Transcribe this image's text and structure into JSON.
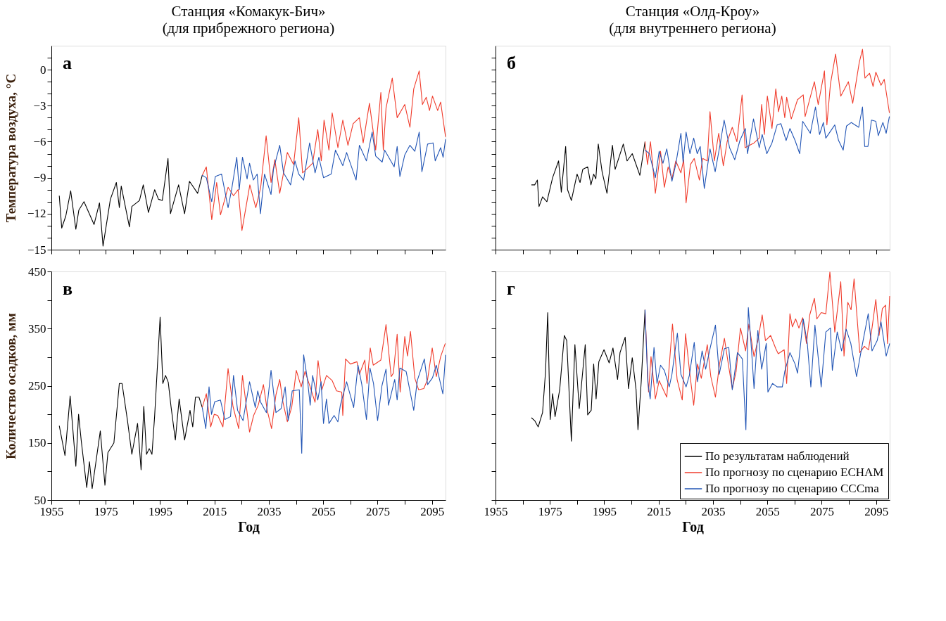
{
  "chart_data": [
    {
      "type": "line",
      "title": "Станция «Комакук-Бич»",
      "subtitle": "(для прибрежного региона)",
      "ylabel": "Температура воздуха, °C",
      "annotations": [
        "а"
      ],
      "xlim": [
        1955,
        2100
      ],
      "xticks": [
        1955,
        {
          "value": 1965,
          "label": null
        },
        1975,
        {
          "value": 1985,
          "label": null
        },
        1995,
        {
          "value": 2005,
          "label": null
        },
        2015,
        {
          "value": 2025,
          "label": null
        },
        2035,
        {
          "value": 2045,
          "label": null
        },
        2055,
        {
          "value": 2065,
          "label": null
        },
        2075,
        {
          "value": 2085,
          "label": null
        },
        2095
      ],
      "ylim": [
        -15,
        2
      ],
      "yticks": [
        -15,
        {
          "value": -14,
          "label": null
        },
        {
          "value": -13,
          "label": null
        },
        -12,
        {
          "value": -11,
          "label": null
        },
        {
          "value": -10,
          "label": null
        },
        -9,
        {
          "value": -8,
          "label": null
        },
        {
          "value": -7,
          "label": null
        },
        -6,
        {
          "value": -5,
          "label": null
        },
        {
          "value": -4,
          "label": null
        },
        -3,
        {
          "value": -2,
          "label": null
        },
        {
          "value": -1,
          "label": null
        },
        0,
        {
          "value": 1,
          "label": null
        }
      ],
      "grid": false,
      "tick_labels": "y",
      "line_style": "solid",
      "marker": "none",
      "series": [
        {
          "color": "#000000",
          "x": [
            1957.9,
            1958.8,
            1960.3,
            1962.1,
            1964,
            1965.1,
            1967,
            1970.7,
            1972.7,
            1974,
            1976.7,
            1978.9,
            1980,
            1980.7,
            1983.7,
            1984.6,
            1987.4,
            1988.8,
            1990.7,
            1993,
            1994.4,
            1995.8,
            1997.9,
            1998.8,
            2001.8,
            2004,
            2005.8,
            2008.8,
            2010.5
          ],
          "values": [
            -10.5,
            -13.2,
            -12.2,
            -10.1,
            -13.3,
            -11.7,
            -11,
            -12.9,
            -11.1,
            -14.7,
            -10.8,
            -9.4,
            -11.5,
            -9.7,
            -13.1,
            -11.4,
            -10.9,
            -9.6,
            -11.9,
            -10,
            -10.8,
            -10.9,
            -7.4,
            -12,
            -9.6,
            -12,
            -9.3,
            -10.3,
            -8.8
          ]
        },
        {
          "color": "#f03c2c",
          "x": [
            2010.5,
            2012,
            2014,
            2015.8,
            2017.2,
            2020,
            2022,
            2023.7,
            2025.1,
            2028,
            2030.2,
            2032,
            2034,
            2035.8,
            2037.2,
            2039,
            2041.8,
            2044.1,
            2046,
            2047.4,
            2051.1,
            2053,
            2054.3,
            2055.3,
            2057.1,
            2058.3,
            2060.4,
            2062.2,
            2064.1,
            2066,
            2068.3,
            2069.7,
            2072,
            2074.3,
            2076.2,
            2077.1,
            2078.1,
            2080.4,
            2082.2,
            2085,
            2086.9,
            2088.3,
            2090.3,
            2091.5,
            2092.9,
            2094.1,
            2095.2,
            2097.1,
            2098.2,
            2100
          ],
          "values": [
            -8.8,
            -8.1,
            -12.5,
            -9.4,
            -12.1,
            -9.8,
            -10.5,
            -10,
            -13.4,
            -9.6,
            -11.5,
            -9.8,
            -5.5,
            -9.4,
            -7.5,
            -10.3,
            -6.9,
            -7.9,
            -4,
            -8.6,
            -7.8,
            -5,
            -7.6,
            -4.2,
            -6.7,
            -3.6,
            -6.5,
            -4.2,
            -6.3,
            -4.5,
            -4,
            -6.1,
            -2.8,
            -6.7,
            -1.9,
            -6.7,
            -3.2,
            -0.7,
            -4,
            -2.9,
            -4.8,
            -1.6,
            -0.1,
            -2.9,
            -2.3,
            -3.4,
            -2.2,
            -3.4,
            -2.7,
            -5.6
          ]
        },
        {
          "color": "#2255b5",
          "x": [
            2010.5,
            2012,
            2014,
            2015.3,
            2017.6,
            2020,
            2021.3,
            2023.2,
            2024.1,
            2025.3,
            2027,
            2027.9,
            2029.3,
            2030.7,
            2031.9,
            2033.4,
            2035.8,
            2036.7,
            2039,
            2040.4,
            2043,
            2044.6,
            2046,
            2047.8,
            2050,
            2052,
            2053.4,
            2055.1,
            2057.9,
            2059.5,
            2062.2,
            2063.6,
            2067.1,
            2068.3,
            2070.9,
            2073,
            2074.3,
            2076.7,
            2077.6,
            2081.1,
            2082.2,
            2083.2,
            2085,
            2086.9,
            2088.7,
            2090.3,
            2091.3,
            2093.4,
            2095.4,
            2096.2,
            2098.2,
            2099.1,
            2100
          ],
          "values": [
            -8.8,
            -9,
            -11,
            -8.9,
            -8.7,
            -11.5,
            -10,
            -7.3,
            -10,
            -7.3,
            -9.1,
            -7.8,
            -9.2,
            -8.7,
            -12,
            -8.7,
            -10.4,
            -8.3,
            -6.3,
            -8.6,
            -9.6,
            -7.6,
            -8.7,
            -9.2,
            -6.1,
            -8.6,
            -7.3,
            -9,
            -8.7,
            -6.7,
            -8,
            -6.9,
            -9.2,
            -6.3,
            -7.6,
            -5.2,
            -7.2,
            -7.7,
            -6.7,
            -8.1,
            -6.4,
            -8.9,
            -7.1,
            -6.3,
            -6.8,
            -5.2,
            -8.5,
            -6.2,
            -6.1,
            -7.6,
            -6.5,
            -7.3,
            -5.8
          ]
        }
      ]
    },
    {
      "type": "line",
      "title": "Станция «Олд-Кроу»",
      "subtitle": "(для внутреннего региона)",
      "annotations": [
        "б"
      ],
      "xlim": [
        1955,
        2100
      ],
      "xticks": [
        1955,
        {
          "value": 1965,
          "label": null
        },
        1975,
        {
          "value": 1985,
          "label": null
        },
        1995,
        {
          "value": 2005,
          "label": null
        },
        2015,
        {
          "value": 2025,
          "label": null
        },
        2035,
        {
          "value": 2045,
          "label": null
        },
        2055,
        {
          "value": 2065,
          "label": null
        },
        2075,
        {
          "value": 2085,
          "label": null
        },
        2095
      ],
      "ylim": [
        -15,
        2
      ],
      "yticks": [
        -15,
        {
          "value": -14,
          "label": null
        },
        {
          "value": -13,
          "label": null
        },
        -12,
        {
          "value": -11,
          "label": null
        },
        {
          "value": -10,
          "label": null
        },
        -9,
        {
          "value": -8,
          "label": null
        },
        {
          "value": -7,
          "label": null
        },
        -6,
        {
          "value": -5,
          "label": null
        },
        {
          "value": -4,
          "label": null
        },
        -3,
        {
          "value": -2,
          "label": null
        },
        {
          "value": -1,
          "label": null
        },
        0,
        {
          "value": 1,
          "label": null
        }
      ],
      "grid": false,
      "tick_labels": false,
      "line_style": "solid",
      "marker": "none",
      "series": [
        {
          "color": "#000000",
          "x": [
            1968.2,
            1969.4,
            1970.4,
            1971,
            1972.3,
            1973.9,
            1976,
            1978.2,
            1979.2,
            1980.8,
            1981.5,
            1982.9,
            1985,
            1986.1,
            1987.1,
            1988.9,
            1990.1,
            1991.1,
            1991.9,
            1992.8,
            1994.2,
            1996,
            1998,
            1999,
            2002,
            2003.4,
            2005.3,
            2008.1,
            2010
          ],
          "values": [
            -9.6,
            -9.6,
            -9.2,
            -11.4,
            -10.6,
            -11,
            -9,
            -7.6,
            -10.2,
            -6.4,
            -10,
            -10.9,
            -8.7,
            -9.4,
            -8.3,
            -8.1,
            -9.6,
            -8.7,
            -9.1,
            -6.2,
            -8.5,
            -10.3,
            -6.3,
            -8.3,
            -6.2,
            -7.6,
            -7,
            -8.8,
            -6
          ]
        },
        {
          "color": "#f03c2c",
          "x": [
            2010,
            2010.9,
            2012,
            2013.8,
            2015.7,
            2017.1,
            2018.5,
            2019.9,
            2021.3,
            2023.2,
            2024.2,
            2025.1,
            2026.7,
            2028.1,
            2030,
            2031.2,
            2032.9,
            2033.9,
            2035.5,
            2037.1,
            2038.8,
            2040.2,
            2042.1,
            2043.8,
            2045.7,
            2046.8,
            2050.1,
            2052,
            2052.9,
            2053.9,
            2055,
            2056.7,
            2058.1,
            2059.1,
            2060.3,
            2061.4,
            2062.1,
            2063.8,
            2066.1,
            2068.2,
            2068.9,
            2072.3,
            2073.7,
            2076,
            2076.9,
            2078.2,
            2080.1,
            2082,
            2084.8,
            2086.4,
            2088.8,
            2090,
            2090.9,
            2092.6,
            2093.9,
            2094.9,
            2096.8,
            2098,
            2099.9
          ],
          "values": [
            -6,
            -7.9,
            -6,
            -10.3,
            -6.8,
            -9.8,
            -8.1,
            -9.1,
            -7.6,
            -8.6,
            -7.5,
            -11.1,
            -7.9,
            -7.4,
            -9.2,
            -7.4,
            -7.6,
            -3.5,
            -7.6,
            -5.3,
            -8,
            -6,
            -4.8,
            -6,
            -2.1,
            -6.5,
            -6.1,
            -5.7,
            -2.9,
            -5.4,
            -2.2,
            -4.9,
            -1.6,
            -3.5,
            -2.2,
            -4,
            -2.3,
            -4.1,
            -2.5,
            -2.1,
            -3.9,
            -1,
            -2.9,
            -0.1,
            -4.6,
            -1.2,
            1.3,
            -2.2,
            -1,
            -2.8,
            0.6,
            1.7,
            -0.7,
            -0.3,
            -1.4,
            -0.2,
            -1.3,
            -0.8,
            -3.6
          ]
        },
        {
          "color": "#2255b5",
          "x": [
            2010,
            2011.6,
            2013.8,
            2015.2,
            2016.6,
            2018,
            2019.9,
            2021.3,
            2023.2,
            2024,
            2025.1,
            2026.5,
            2027.9,
            2029.2,
            2030.3,
            2031.8,
            2033.9,
            2035.8,
            2037.4,
            2039.1,
            2041.1,
            2043,
            2044.9,
            2046.9,
            2047.7,
            2049.9,
            2052,
            2053.1,
            2054.8,
            2056.7,
            2058.6,
            2060,
            2061.9,
            2063.3,
            2065.2,
            2066.9,
            2068,
            2070.8,
            2072.7,
            2074.2,
            2075.6,
            2076.5,
            2079.8,
            2081.2,
            2082.9,
            2084.1,
            2085.9,
            2088.6,
            2090,
            2090.8,
            2092,
            2093.3,
            2094.9,
            2095.8,
            2097.5,
            2098.7,
            2099.9
          ],
          "values": [
            -6.7,
            -7,
            -9,
            -6.8,
            -7.8,
            -6.6,
            -9.3,
            -7.9,
            -5.3,
            -7.7,
            -5.2,
            -7,
            -5.7,
            -7,
            -6.4,
            -9.9,
            -6.6,
            -8.5,
            -6.5,
            -4.2,
            -6.5,
            -7.5,
            -5.9,
            -4.9,
            -7,
            -4.1,
            -6.5,
            -5.4,
            -7,
            -6.1,
            -4.6,
            -4.5,
            -5.9,
            -4.9,
            -5.9,
            -7,
            -4.3,
            -5.3,
            -3.1,
            -5.4,
            -4.4,
            -5.7,
            -4.6,
            -5.9,
            -6.7,
            -4.7,
            -4.4,
            -4.8,
            -3.1,
            -6.4,
            -6.4,
            -4.2,
            -4.3,
            -5.5,
            -4.4,
            -5.3,
            -3.9
          ]
        }
      ]
    },
    {
      "type": "line",
      "xlabel": "Год",
      "ylabel": "Количество осадков, мм",
      "annotations": [
        "в"
      ],
      "xlim": [
        1955,
        2100
      ],
      "xticks": [
        1955,
        {
          "value": 1965,
          "label": null
        },
        1975,
        {
          "value": 1985,
          "label": null
        },
        1995,
        {
          "value": 2005,
          "label": null
        },
        2015,
        {
          "value": 2025,
          "label": null
        },
        2035,
        {
          "value": 2045,
          "label": null
        },
        2055,
        {
          "value": 2065,
          "label": null
        },
        2075,
        {
          "value": 2085,
          "label": null
        },
        2095
      ],
      "ylim": [
        50,
        450
      ],
      "yticks": [
        50,
        {
          "value": 100,
          "label": null
        },
        150,
        {
          "value": 200,
          "label": null
        },
        250,
        {
          "value": 300,
          "label": null
        },
        350,
        {
          "value": 400,
          "label": null
        },
        450
      ],
      "grid": false,
      "line_style": "solid",
      "marker": "none",
      "series": [
        {
          "color": "#000000",
          "x": [
            1957.9,
            1960,
            1961.9,
            1964,
            1965,
            1966,
            1968,
            1969,
            1970,
            1973,
            1974.7,
            1975.8,
            1978,
            1980,
            1981,
            1983,
            1984.6,
            1986.7,
            1988,
            1989,
            1990,
            1991,
            1992,
            1993,
            1994,
            1995,
            1996,
            1997,
            1998,
            1999,
            2000.6,
            2002,
            2004,
            2006,
            2007,
            2008,
            2009.3,
            2010.5
          ],
          "values": [
            180,
            128,
            232,
            109,
            200,
            153,
            72,
            117,
            70,
            171,
            76,
            133,
            150,
            254,
            254,
            189,
            130,
            184,
            103,
            214,
            130,
            140,
            130,
            198,
            284,
            370,
            254,
            268,
            256,
            214,
            155,
            227,
            155,
            207,
            178,
            230,
            230,
            212
          ]
        },
        {
          "color": "#f03c2c",
          "x": [
            2010.5,
            2012,
            2013.6,
            2014.9,
            2016.2,
            2018.1,
            2020,
            2021.8,
            2023.9,
            2025.3,
            2027.9,
            2029.4,
            2031.1,
            2033,
            2034.4,
            2036,
            2037.6,
            2039,
            2040.2,
            2041.8,
            2043.4,
            2045.1,
            2046.9,
            2048.3,
            2050.2,
            2052,
            2053.1,
            2054.5,
            2056.2,
            2058.3,
            2059.9,
            2061.8,
            2062.2,
            2063.2,
            2065,
            2067.4,
            2068.3,
            2070.3,
            2071.1,
            2072.3,
            2073.4,
            2076.2,
            2078.1,
            2080,
            2080.8,
            2082.2,
            2083.3,
            2085,
            2086,
            2087.1,
            2088.7,
            2090.1,
            2092,
            2093.4,
            2095.1,
            2096.6,
            2098.2,
            2099.9
          ],
          "values": [
            212,
            236,
            178,
            200,
            198,
            178,
            280,
            214,
            175,
            268,
            169,
            198,
            216,
            252,
            207,
            175,
            234,
            261,
            221,
            187,
            212,
            277,
            248,
            275,
            248,
            221,
            294,
            243,
            268,
            259,
            241,
            239,
            198,
            297,
            288,
            292,
            270,
            295,
            254,
            316,
            286,
            295,
            357,
            266,
            272,
            340,
            239,
            336,
            302,
            345,
            263,
            243,
            245,
            261,
            316,
            266,
            301,
            324
          ]
        },
        {
          "color": "#2255b5",
          "x": [
            2010.5,
            2011.8,
            2013,
            2013.9,
            2015.1,
            2017.2,
            2018.8,
            2020.9,
            2022,
            2023.5,
            2025.5,
            2027.9,
            2030,
            2030.9,
            2032,
            2034.1,
            2035.8,
            2037.6,
            2039.5,
            2041,
            2042.1,
            2043.6,
            2046.2,
            2047.1,
            2047.8,
            2049.2,
            2050.2,
            2051.1,
            2053,
            2054.2,
            2055.1,
            2056.2,
            2057.1,
            2059,
            2060.4,
            2061.3,
            2063.6,
            2066.2,
            2067.8,
            2069.2,
            2070.9,
            2072.2,
            2073.5,
            2075,
            2076.6,
            2078.1,
            2079,
            2081.3,
            2082.2,
            2083.2,
            2085.5,
            2088.3,
            2089.6,
            2092.2,
            2093.4,
            2095.2,
            2096.6,
            2099,
            2100
          ],
          "values": [
            212,
            175,
            248,
            200,
            222,
            225,
            191,
            196,
            268,
            207,
            189,
            257,
            212,
            241,
            221,
            203,
            277,
            203,
            210,
            248,
            189,
            241,
            243,
            132,
            304,
            261,
            216,
            268,
            225,
            257,
            184,
            227,
            184,
            198,
            187,
            216,
            257,
            212,
            286,
            252,
            191,
            281,
            254,
            189,
            250,
            279,
            216,
            261,
            225,
            281,
            275,
            207,
            259,
            297,
            252,
            264,
            286,
            236,
            304
          ]
        }
      ]
    },
    {
      "type": "line",
      "xlabel": "Год",
      "annotations": [
        "г"
      ],
      "legend": "bottom right",
      "xlim": [
        1955,
        2100
      ],
      "xticks": [
        1955,
        {
          "value": 1965,
          "label": null
        },
        1975,
        {
          "value": 1985,
          "label": null
        },
        1995,
        {
          "value": 2005,
          "label": null
        },
        2015,
        {
          "value": 2025,
          "label": null
        },
        2035,
        {
          "value": 2045,
          "label": null
        },
        2055,
        {
          "value": 2065,
          "label": null
        },
        2075,
        {
          "value": 2085,
          "label": null
        },
        2095
      ],
      "ylim": [
        50,
        450
      ],
      "yticks": [
        50,
        {
          "value": 100,
          "label": null
        },
        150,
        {
          "value": 200,
          "label": null
        },
        250,
        {
          "value": 300,
          "label": null
        },
        350,
        {
          "value": 400,
          "label": null
        },
        450
      ],
      "grid": false,
      "tick_labels": "x",
      "line_style": "solid",
      "marker": "none",
      "series": [
        {
          "name": "По результатам наблюдений",
          "color": "#000000",
          "x": [
            1968.2,
            1969.4,
            1970.7,
            1972.3,
            1973.4,
            1974.2,
            1975.1,
            1976,
            1976.9,
            1978.6,
            1980.3,
            1981.2,
            1982.9,
            1984.2,
            1985.8,
            1988,
            1988.9,
            1990.2,
            1991.1,
            1992,
            1993,
            1994.9,
            1996.8,
            1998.2,
            1999.9,
            2000.8,
            2002.7,
            2003.9,
            2005.3,
            2006.7,
            2007.4,
            2008.6,
            2010
          ],
          "values": [
            194,
            189,
            178,
            203,
            275,
            378,
            191,
            236,
            196,
            243,
            338,
            329,
            153,
            322,
            210,
            322,
            199,
            207,
            288,
            227,
            292,
            313,
            290,
            316,
            261,
            308,
            335,
            245,
            299,
            243,
            173,
            257,
            383
          ]
        },
        {
          "name": "По прогнозу по сценарию ECHAM",
          "color": "#f03c2c",
          "x": [
            2010,
            2010.8,
            2011.3,
            2012.2,
            2013.8,
            2015.2,
            2018,
            2020.1,
            2021.8,
            2023.7,
            2024.9,
            2026.5,
            2027.9,
            2029.3,
            2030.7,
            2032.9,
            2034.2,
            2035.9,
            2037.4,
            2039.2,
            2040.7,
            2042.1,
            2043.5,
            2045.1,
            2047,
            2048.2,
            2050.1,
            2051.5,
            2053.1,
            2054.3,
            2056.2,
            2058.1,
            2059,
            2061.2,
            2062.1,
            2063.3,
            2064.2,
            2065.4,
            2066.6,
            2068,
            2069.4,
            2070.6,
            2072.3,
            2073.2,
            2074.8,
            2076.5,
            2078,
            2079.8,
            2082,
            2083.2,
            2084.6,
            2085.8,
            2086.9,
            2089,
            2090.7,
            2092.2,
            2093.5,
            2094.9,
            2096.1,
            2097.3,
            2098.5,
            2099.2,
            2100
          ],
          "values": [
            383,
            288,
            239,
            301,
            227,
            259,
            230,
            358,
            261,
            225,
            341,
            270,
            216,
            288,
            263,
            322,
            266,
            230,
            288,
            333,
            286,
            245,
            275,
            351,
            311,
            358,
            301,
            329,
            374,
            329,
            338,
            315,
            306,
            313,
            254,
            376,
            353,
            367,
            351,
            369,
            324,
            374,
            403,
            367,
            378,
            376,
            449,
            344,
            432,
            302,
            396,
            383,
            437,
            308,
            319,
            313,
            351,
            401,
            338,
            385,
            391,
            324,
            407
          ]
        },
        {
          "name": "По прогнозу по сценарию CCCma",
          "color": "#2255b5",
          "x": [
            2010,
            2011,
            2011.9,
            2013.3,
            2014.4,
            2015.7,
            2017.1,
            2018.9,
            2019.9,
            2021.9,
            2023.2,
            2025.1,
            2026.3,
            2028.1,
            2029.3,
            2031,
            2032.3,
            2034,
            2035.9,
            2037.3,
            2039.2,
            2040.8,
            2042.1,
            2044,
            2045.8,
            2047.1,
            2048,
            2049.2,
            2050.1,
            2051.5,
            2052.9,
            2054.6,
            2055.2,
            2056.9,
            2058.6,
            2060.5,
            2061.4,
            2063.3,
            2065.2,
            2066.1,
            2068.2,
            2069.7,
            2071,
            2072.5,
            2074.8,
            2076.5,
            2078.2,
            2078.9,
            2080.7,
            2082.3,
            2084,
            2085.7,
            2087.8,
            2089.5,
            2092.1,
            2093.5,
            2095.4,
            2096.8,
            2098.7,
            2100
          ],
          "values": [
            383,
            257,
            227,
            317,
            254,
            286,
            277,
            248,
            270,
            342,
            270,
            248,
            268,
            326,
            257,
            311,
            279,
            317,
            356,
            270,
            315,
            317,
            243,
            308,
            297,
            173,
            387,
            311,
            245,
            347,
            279,
            324,
            239,
            254,
            248,
            248,
            275,
            308,
            288,
            272,
            367,
            324,
            248,
            356,
            248,
            344,
            351,
            277,
            344,
            311,
            349,
            324,
            266,
            311,
            376,
            311,
            329,
            362,
            302,
            324
          ]
        }
      ]
    }
  ]
}
